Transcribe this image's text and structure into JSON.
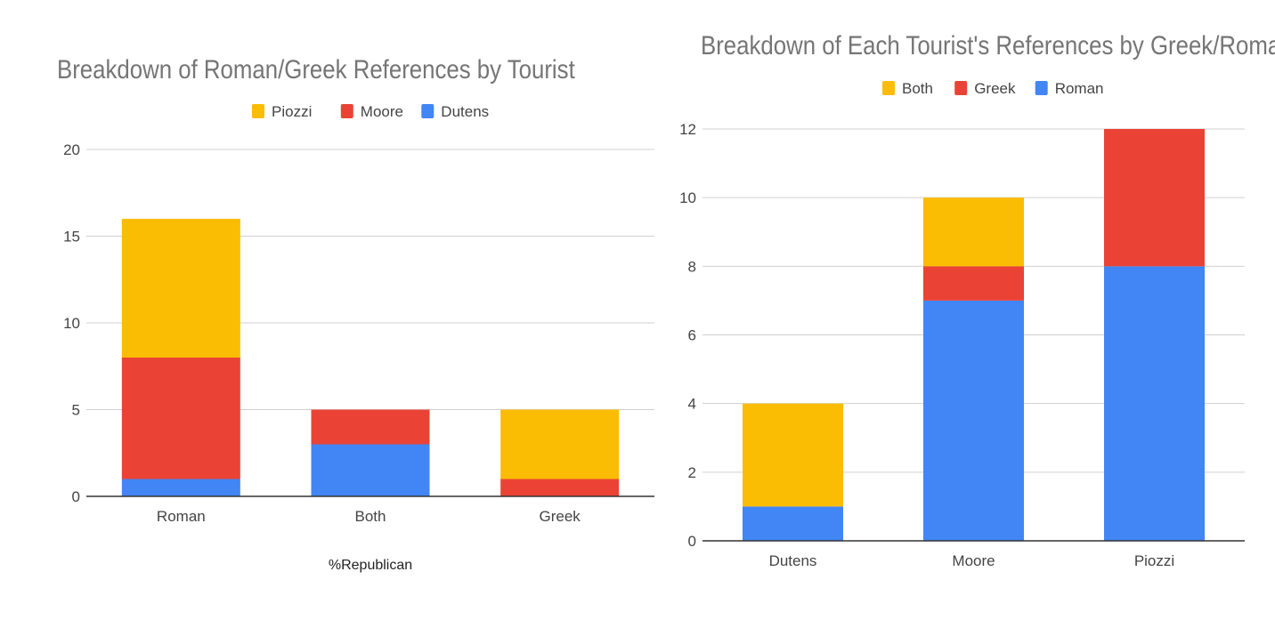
{
  "chart_data": [
    {
      "type": "bar",
      "stacked": true,
      "title": "Breakdown of Roman/Greek References by Tourist",
      "xlabel": "%Republican",
      "ylabel": "",
      "ylim": [
        0,
        20
      ],
      "yticks": [
        0,
        5,
        10,
        15,
        20
      ],
      "grid": true,
      "legend_position": "top",
      "categories": [
        "Roman",
        "Both",
        "Greek"
      ],
      "series": [
        {
          "name": "Dutens",
          "color": "#4285F4",
          "values": [
            1,
            3,
            0
          ]
        },
        {
          "name": "Moore",
          "color": "#EA4335",
          "values": [
            7,
            2,
            1
          ]
        },
        {
          "name": "Piozzi",
          "color": "#FBBC04",
          "values": [
            8,
            0,
            4
          ]
        }
      ],
      "legend_order": [
        "Piozzi",
        "Moore",
        "Dutens"
      ]
    },
    {
      "type": "bar",
      "stacked": true,
      "title": "Breakdown of Each Tourist's References by Greek/Roman",
      "xlabel": "",
      "ylabel": "",
      "ylim": [
        0,
        12
      ],
      "yticks": [
        0,
        2,
        4,
        6,
        8,
        10,
        12
      ],
      "grid": true,
      "legend_position": "top",
      "categories": [
        "Dutens",
        "Moore",
        "Piozzi"
      ],
      "series": [
        {
          "name": "Roman",
          "color": "#4285F4",
          "values": [
            1,
            7,
            8
          ]
        },
        {
          "name": "Greek",
          "color": "#EA4335",
          "values": [
            0,
            1,
            4
          ]
        },
        {
          "name": "Both",
          "color": "#FBBC04",
          "values": [
            3,
            2,
            0
          ]
        }
      ],
      "legend_order": [
        "Both",
        "Greek",
        "Roman"
      ]
    }
  ]
}
